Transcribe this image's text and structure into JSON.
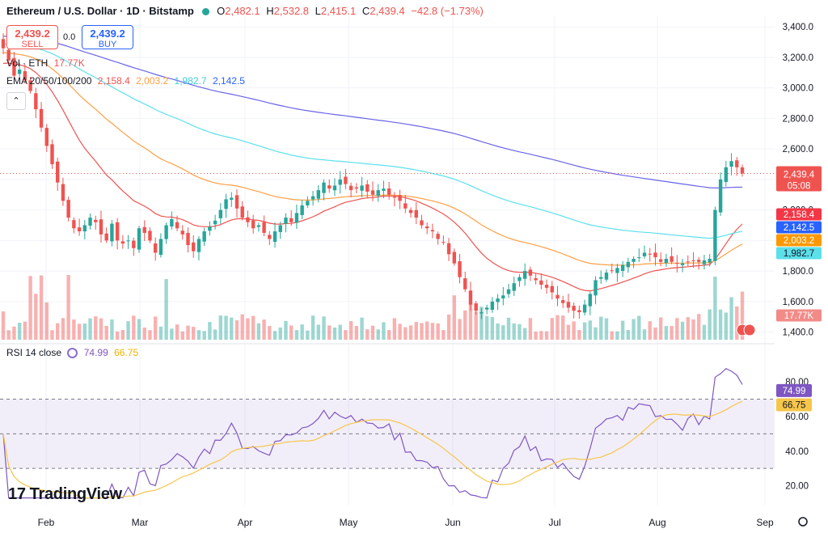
{
  "header": {
    "symbol": "Ethereum / U.S. Dollar · 1D · Bitstamp",
    "open_label": "O",
    "open": "2,482.1",
    "high_label": "H",
    "high": "2,532.8",
    "low_label": "L",
    "low": "2,415.1",
    "close_label": "C",
    "close": "2,439.4",
    "change": "−42.8 (−1.73%)"
  },
  "trade": {
    "sell_price": "2,439.2",
    "sell_label": "SELL",
    "spread": "0.0",
    "buy_price": "2,439.2",
    "buy_label": "BUY"
  },
  "legends": {
    "vol_label": "Vol · ETH",
    "vol_value": "17.77K",
    "ema_label": "EMA 20/50/100/200",
    "ema20": "2,158.4",
    "ema50": "2,003.2",
    "ema100": "1,982.7",
    "ema200": "2,142.5",
    "rsi_label": "RSI 14 close",
    "rsi_value": "74.99",
    "rsi_ma": "66.75"
  },
  "brand": {
    "name": "TradingView"
  },
  "colors": {
    "up": "#26a69a",
    "down": "#ef5350",
    "ema20": "#ef5350",
    "ema50": "#ff9f43",
    "ema100": "#5be0ea",
    "ema200": "#6a63e6",
    "rsi": "#8a6fd0",
    "rsi_ma": "#f6c64b"
  },
  "chart_data": [
    {
      "type": "candlestick",
      "title": "Ethereum / U.S. Dollar · 1D · Bitstamp",
      "x_tick_labels": [
        "Feb",
        "Mar",
        "Apr",
        "May",
        "Jun",
        "Jul",
        "Aug",
        "Sep"
      ],
      "y_tick_labels": [
        "1,400.0",
        "1,600.0",
        "1,800.0",
        "2,000.0",
        "2,200.0",
        "2,400.0",
        "2,600.0",
        "2,800.0",
        "3,000.0",
        "3,200.0",
        "3,400.0"
      ],
      "ylim": [
        1350,
        3470
      ],
      "close_series": [
        3260,
        3180,
        3080,
        3120,
        3050,
        2980,
        2860,
        2740,
        2620,
        2500,
        2380,
        2260,
        2150,
        2080,
        2060,
        2100,
        2150,
        2120,
        2040,
        2000,
        2110,
        2000,
        1980,
        2000,
        1950,
        2080,
        2050,
        2000,
        1920,
        2010,
        2100,
        2140,
        2080,
        2040,
        1970,
        1930,
        2010,
        2060,
        2090,
        2130,
        2200,
        2270,
        2280,
        2210,
        2150,
        2120,
        2080,
        2100,
        2050,
        2010,
        2060,
        2100,
        2150,
        2120,
        2180,
        2230,
        2260,
        2290,
        2330,
        2380,
        2340,
        2360,
        2400,
        2370,
        2330,
        2340,
        2360,
        2320,
        2300,
        2330,
        2340,
        2300,
        2280,
        2260,
        2210,
        2180,
        2150,
        2100,
        2080,
        2060,
        2010,
        1990,
        1910,
        1850,
        1760,
        1680,
        1580,
        1540,
        1530,
        1560,
        1600,
        1620,
        1640,
        1680,
        1720,
        1760,
        1800,
        1770,
        1740,
        1710,
        1690,
        1660,
        1620,
        1590,
        1560,
        1540,
        1530,
        1580,
        1650,
        1740,
        1760,
        1790,
        1800,
        1820,
        1840,
        1860,
        1880,
        1890,
        1920,
        1910,
        1890,
        1860,
        1880,
        1860,
        1850,
        1850,
        1860,
        1870,
        1860,
        1870,
        1880,
        2200,
        2400,
        2480,
        2520,
        2480,
        2439
      ],
      "last_price": "2,439.4",
      "last_price_countdown": "05:08",
      "series": [
        {
          "name": "EMA 20",
          "last": "2,158.4"
        },
        {
          "name": "EMA 50",
          "last": "2,003.2"
        },
        {
          "name": "EMA 100",
          "last": "1,982.7"
        },
        {
          "name": "EMA 200",
          "last": "2,142.5"
        }
      ],
      "volume_last": "17.77K"
    },
    {
      "type": "line",
      "title": "RSI 14 close",
      "y_tick_labels": [
        "20.00",
        "40.00",
        "60.00",
        "80.00"
      ],
      "ylim": [
        10,
        95
      ],
      "bands": [
        30,
        50,
        70
      ],
      "series": [
        {
          "name": "RSI",
          "last": "74.99"
        },
        {
          "name": "RSI MA",
          "last": "66.75"
        }
      ]
    }
  ]
}
